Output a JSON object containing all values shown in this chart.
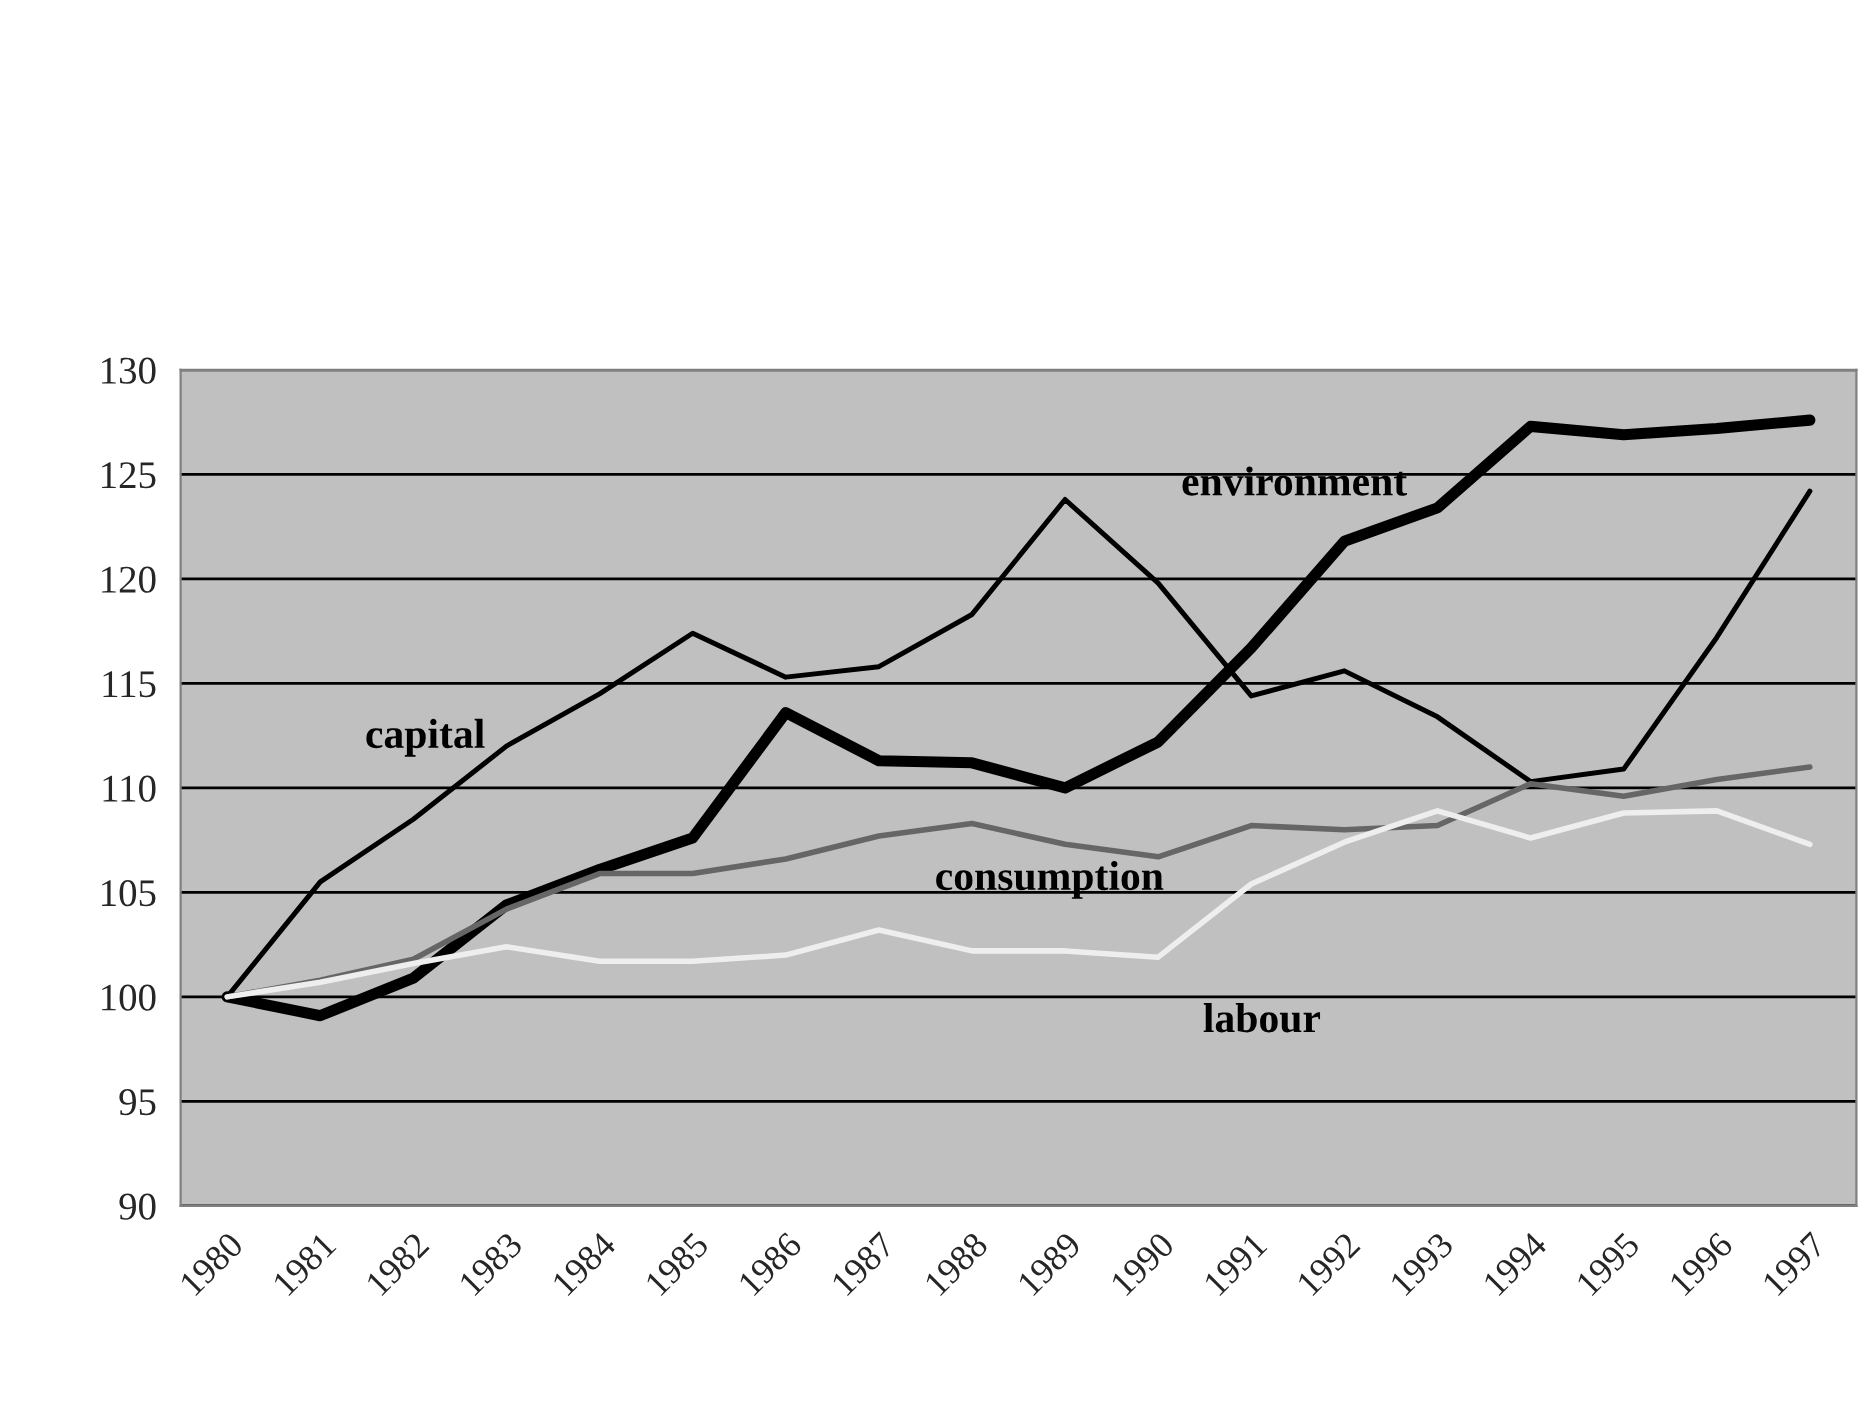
{
  "chart_data": {
    "type": "line",
    "categories": [
      "1980",
      "1981",
      "1982",
      "1983",
      "1984",
      "1985",
      "1986",
      "1987",
      "1988",
      "1989",
      "1990",
      "1991",
      "1992",
      "1993",
      "1994",
      "1995",
      "1996",
      "1997"
    ],
    "series": [
      {
        "name": "capital",
        "color": "#000000",
        "values": [
          100,
          105.5,
          108.5,
          112,
          114.5,
          117.4,
          115.3,
          115.8,
          118.3,
          123.8,
          119.8,
          114.4,
          115.6,
          113.4,
          110.3,
          110.9,
          117.2,
          124.2
        ]
      },
      {
        "name": "environment",
        "color": "#000000",
        "values": [
          100,
          99.1,
          100.9,
          104.4,
          106.1,
          107.6,
          113.6,
          111.3,
          111.2,
          110.0,
          112.2,
          116.7,
          121.8,
          123.4,
          127.3,
          126.9,
          127.2,
          127.6
        ]
      },
      {
        "name": "consumption",
        "color": "#666666",
        "values": [
          100,
          100.8,
          101.8,
          104.2,
          105.9,
          105.9,
          106.6,
          107.7,
          108.3,
          107.3,
          106.7,
          108.2,
          108.0,
          108.2,
          110.2,
          109.6,
          110.4,
          111.0
        ]
      },
      {
        "name": "labour",
        "color": "#eeeeee",
        "values": [
          100,
          100.7,
          101.6,
          102.4,
          101.7,
          101.7,
          102.0,
          103.2,
          102.2,
          102.2,
          101.9,
          105.4,
          107.4,
          108.9,
          107.6,
          108.8,
          108.9,
          107.3
        ]
      }
    ],
    "ylim": [
      90,
      130
    ],
    "yticks": [
      90,
      95,
      100,
      105,
      110,
      115,
      120,
      125,
      130
    ],
    "grid": "y",
    "legend": false,
    "marker": "none",
    "line_style": "solid"
  }
}
